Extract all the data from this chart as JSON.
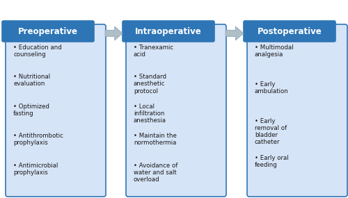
{
  "header_color": "#2E75B6",
  "box_fill_color": "#D6E4F7",
  "box_edge_color": "#2E75B6",
  "header_text_color": "#FFFFFF",
  "body_text_color": "#1A1A1A",
  "arrow_color": "#B0BEC5",
  "headers": [
    "Preoperative",
    "Intraoperative",
    "Postoperative"
  ],
  "items": [
    [
      "Education and\ncounseling",
      "Nutritional\nevaluation",
      "Optimized\nfasting",
      "Antithrombotic\nprophylaxis",
      "Antimicrobial\nprophylaxis"
    ],
    [
      "Tranexamic\nacid",
      "Standard\nanesthetic\nprotocol",
      "Local\ninfiltration\nanesthesia",
      "Maintain the\nnormothermia",
      "Avoidance of\nwater and salt\noverload"
    ],
    [
      "Multimodal\nanalgesia",
      "Early\nambulation",
      "Early\nremoval of\nbladder\ncatheter",
      "Early oral\nfeeding"
    ]
  ],
  "fig_width": 5.0,
  "fig_height": 2.85,
  "dpi": 100,
  "background_color": "#FFFFFF",
  "header_fontsize": 8.5,
  "body_fontsize": 6.2
}
